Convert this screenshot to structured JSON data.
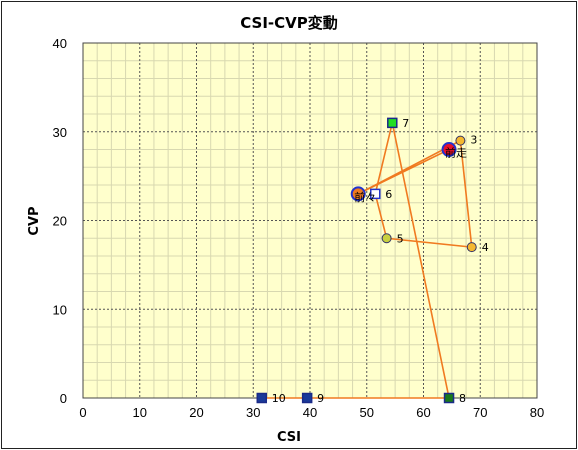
{
  "chart_data": {
    "type": "scatter",
    "title": "CSI-CVP変動",
    "xlabel": "CSI",
    "ylabel": "CVP",
    "xlim": [
      0,
      80
    ],
    "ylim": [
      0,
      40
    ],
    "xticks": [
      0,
      10,
      20,
      30,
      40,
      50,
      60,
      70,
      80
    ],
    "yticks": [
      0,
      10,
      20,
      30,
      40
    ],
    "grid": true,
    "legend": "none",
    "plot_background": "#ffffcc",
    "line_color": "#f07a20",
    "points": [
      {
        "label": "前走",
        "x": 64.5,
        "y": 28,
        "marker": "circle-large",
        "fill": "#e8102a",
        "stroke": "#2233cc"
      },
      {
        "label": "前々",
        "x": 48.5,
        "y": 23,
        "marker": "circle-large",
        "fill": "#f07a20",
        "stroke": "#2233cc"
      },
      {
        "label": "3",
        "x": 66.5,
        "y": 29,
        "marker": "circle",
        "fill": "#f5b830",
        "stroke": "#333366"
      },
      {
        "label": "4",
        "x": 68.5,
        "y": 17,
        "marker": "circle",
        "fill": "#f5b830",
        "stroke": "#333366"
      },
      {
        "label": "5",
        "x": 53.5,
        "y": 18,
        "marker": "circle",
        "fill": "#c8d040",
        "stroke": "#333366"
      },
      {
        "label": "6",
        "x": 51.5,
        "y": 23,
        "marker": "square",
        "fill": "#ffffff",
        "stroke": "#2233cc"
      },
      {
        "label": "7",
        "x": 54.5,
        "y": 31,
        "marker": "square",
        "fill": "#22dd22",
        "stroke": "#1a2a88"
      },
      {
        "label": "8",
        "x": 64.5,
        "y": 0,
        "marker": "square",
        "fill": "#1a7a1a",
        "stroke": "#1a2a88"
      },
      {
        "label": "9",
        "x": 39.5,
        "y": 0,
        "marker": "square",
        "fill": "#1a3a99",
        "stroke": "#1a2a88"
      },
      {
        "label": "10",
        "x": 31.5,
        "y": 0,
        "marker": "square",
        "fill": "#1a3a99",
        "stroke": "#1a2a88"
      }
    ]
  }
}
